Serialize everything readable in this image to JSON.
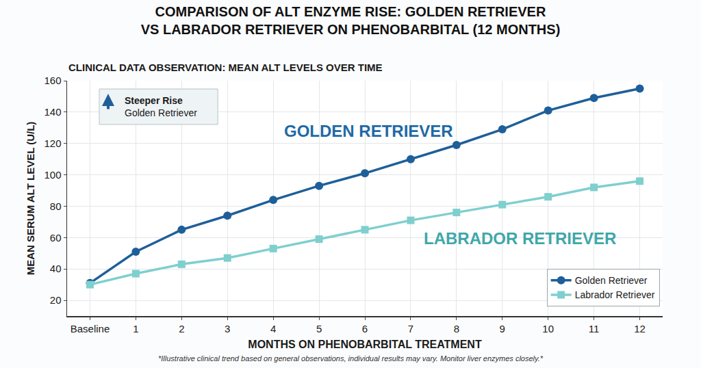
{
  "chart_data": {
    "type": "line",
    "title": "COMPARISON OF ALT ENZYME RISE: GOLDEN RETRIEVER VS LABRADOR RETRIEVER ON PHENOBARBITAL (12 MONTHS)",
    "subtitle": "CLINICAL DATA OBSERVATION: MEAN ALT LEVELS OVER TIME",
    "x_label": "MONTHS ON PHENOBARBITAL TREATMENT",
    "y_label": "MEAN SERUM ALT LEVEL (U/L)",
    "categories": [
      "Baseline",
      "1",
      "2",
      "3",
      "4",
      "5",
      "6",
      "7",
      "8",
      "9",
      "10",
      "11",
      "12"
    ],
    "series": [
      {
        "name": "Golden Retriever",
        "color": "#1f5f99",
        "marker": "circle",
        "values": [
          31,
          51,
          65,
          74,
          84,
          93,
          101,
          110,
          119,
          129,
          141,
          149,
          155
        ]
      },
      {
        "name": "Labrador Retriever",
        "color": "#7fcfcf",
        "marker": "square",
        "values": [
          30,
          37,
          43,
          47,
          53,
          59,
          65,
          71,
          76,
          81,
          86,
          92,
          96
        ]
      }
    ],
    "ylim": [
      10,
      160
    ],
    "yticks": [
      20,
      40,
      60,
      80,
      100,
      120,
      140,
      160
    ],
    "grid": true,
    "legend": "lower right",
    "annotations": [
      {
        "text": "Steeper Rise",
        "subtext": "Golden Retriever"
      },
      {
        "text": "GOLDEN RETRIEVER"
      },
      {
        "text": "LABRADOR RETRIEVER"
      }
    ],
    "footnote": "*Illustrative clinical trend based on general observations, individual results may vary. Monitor liver enzymes closely.*"
  }
}
